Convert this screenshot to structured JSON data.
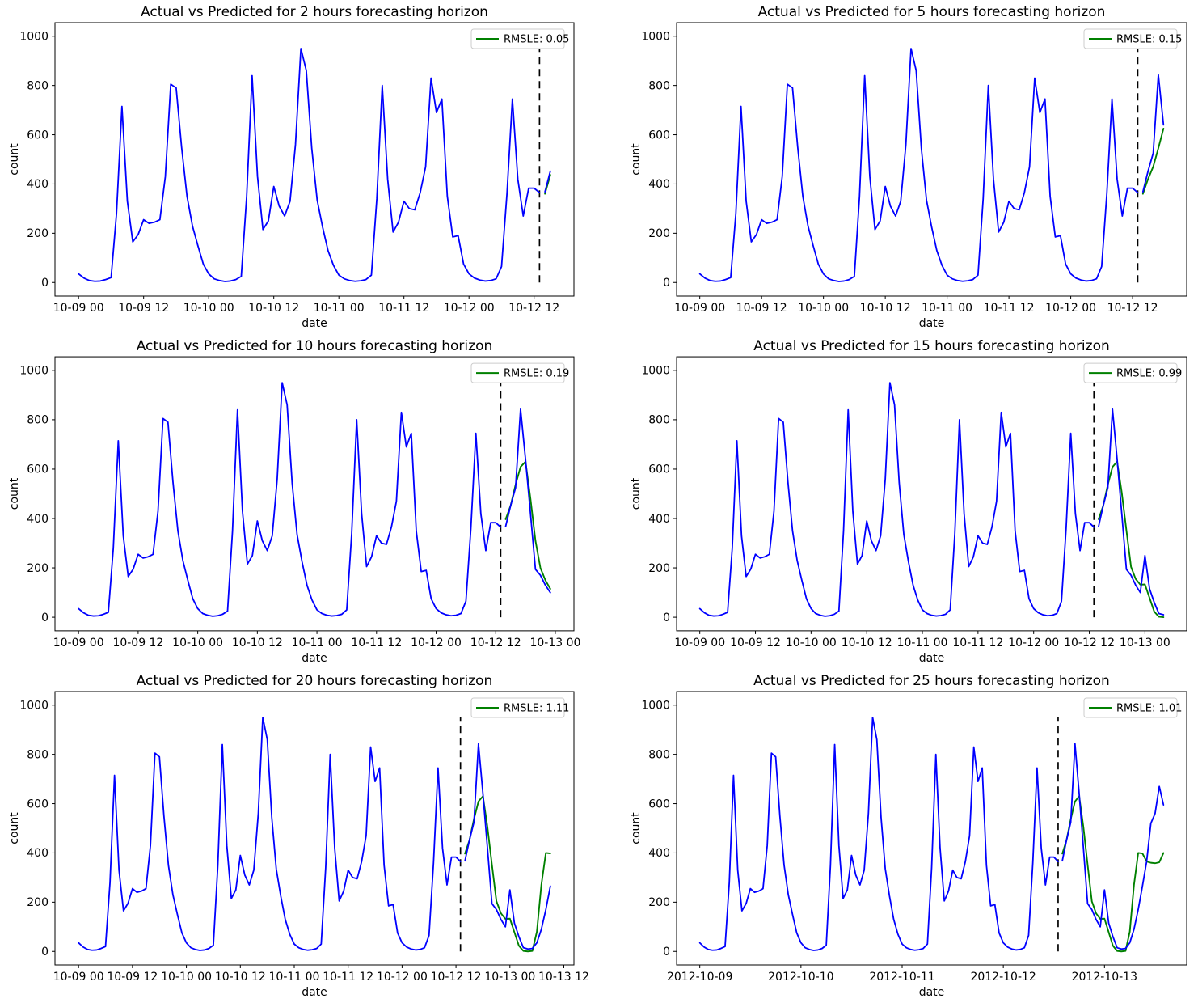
{
  "chart_data": {
    "type": "line",
    "layout": {
      "rows": 3,
      "cols": 2
    },
    "shared": {
      "xlabel": "date",
      "ylabel": "count",
      "y_ticks": [
        0,
        200,
        400,
        600,
        800,
        1000
      ],
      "ylim": [
        -55,
        1055
      ],
      "start_timestamp": "2012-10-09 00:00",
      "hour_step": 1,
      "forecast_split_hour": 85,
      "split_line_value_range": [
        0,
        950
      ],
      "colors": {
        "actual": "#0000ff",
        "predicted": "#008000",
        "split_line": "#000000",
        "legend_border": "#cccccc"
      },
      "actual_history_start_hour": 0,
      "actual_history": [
        35,
        18,
        8,
        5,
        6,
        12,
        20,
        280,
        715,
        330,
        165,
        195,
        255,
        240,
        245,
        255,
        430,
        805,
        790,
        550,
        350,
        230,
        150,
        75,
        35,
        15,
        8,
        4,
        6,
        12,
        25,
        350,
        840,
        430,
        215,
        250,
        390,
        310,
        270,
        330,
        560,
        950,
        860,
        545,
        335,
        225,
        130,
        70,
        30,
        15,
        8,
        5,
        7,
        12,
        30,
        340,
        800,
        420,
        205,
        245,
        330,
        300,
        295,
        365,
        470,
        830,
        690,
        745,
        350,
        185,
        190,
        75,
        35,
        18,
        10,
        6,
        8,
        15,
        65,
        360,
        745,
        420,
        270,
        383,
        383,
        365
      ],
      "actual_future_start_hour": 86,
      "actual_future": [
        368,
        452,
        525,
        843,
        640,
        420,
        194,
        170,
        130,
        100,
        250,
        115,
        60,
        15,
        10,
        12,
        35,
        90,
        170,
        265,
        365,
        520,
        560,
        670,
        595
      ]
    },
    "charts": [
      {
        "id": "2h",
        "title": "Actual vs Predicted for 2 hours forecasting horizon",
        "horizon_hours": 2,
        "rmsle": 0.05,
        "legend_label": "RMSLE: 0.05",
        "x_tick_hours": [
          0,
          12,
          24,
          36,
          48,
          60,
          72,
          84
        ],
        "x_tick_labels": [
          "10-09 00",
          "10-09 12",
          "10-10 00",
          "10-10 12",
          "10-11 00",
          "10-11 12",
          "10-12 00",
          "10-12 12"
        ],
        "predicted": [
          360,
          437
        ]
      },
      {
        "id": "5h",
        "title": "Actual vs Predicted for 5 hours forecasting horizon",
        "horizon_hours": 5,
        "rmsle": 0.15,
        "legend_label": "RMSLE: 0.15",
        "x_tick_hours": [
          0,
          12,
          24,
          36,
          48,
          60,
          72,
          84
        ],
        "x_tick_labels": [
          "10-09 00",
          "10-09 12",
          "10-10 00",
          "10-10 12",
          "10-11 00",
          "10-11 12",
          "10-12 00",
          "10-12 12"
        ],
        "predicted": [
          360,
          420,
          470,
          545,
          625
        ]
      },
      {
        "id": "10h",
        "title": "Actual vs Predicted for 10 hours forecasting horizon",
        "horizon_hours": 10,
        "rmsle": 0.19,
        "legend_label": "RMSLE: 0.19",
        "x_tick_hours": [
          0,
          12,
          24,
          36,
          48,
          60,
          72,
          84,
          96
        ],
        "x_tick_labels": [
          "10-09 00",
          "10-09 12",
          "10-10 00",
          "10-10 12",
          "10-11 00",
          "10-11 12",
          "10-12 00",
          "10-12 12",
          "10-13 00"
        ],
        "predicted": [
          397,
          452,
          537,
          609,
          630,
          480,
          310,
          200,
          150,
          115
        ]
      },
      {
        "id": "15h",
        "title": "Actual vs Predicted for 15 hours forecasting horizon",
        "horizon_hours": 15,
        "rmsle": 0.99,
        "legend_label": "RMSLE: 0.99",
        "x_tick_hours": [
          0,
          12,
          24,
          36,
          48,
          60,
          72,
          84,
          96
        ],
        "x_tick_labels": [
          "10-09 00",
          "10-09 12",
          "10-10 00",
          "10-10 12",
          "10-11 00",
          "10-11 12",
          "10-12 00",
          "10-12 12",
          "10-13 00"
        ],
        "predicted": [
          397,
          452,
          537,
          609,
          630,
          505,
          352,
          204,
          155,
          132,
          133,
          78,
          23,
          2,
          0
        ]
      },
      {
        "id": "20h",
        "title": "Actual vs Predicted for 20 hours forecasting horizon",
        "horizon_hours": 20,
        "rmsle": 1.11,
        "legend_label": "RMSLE: 1.11",
        "x_tick_hours": [
          0,
          12,
          24,
          36,
          48,
          60,
          72,
          84,
          96,
          108
        ],
        "x_tick_labels": [
          "10-09 00",
          "10-09 12",
          "10-10 00",
          "10-10 12",
          "10-11 00",
          "10-11 12",
          "10-12 00",
          "10-12 12",
          "10-13 00",
          "10-13 12"
        ],
        "predicted": [
          397,
          452,
          537,
          609,
          630,
          505,
          352,
          204,
          155,
          132,
          133,
          78,
          23,
          2,
          0,
          2,
          80,
          270,
          400,
          398
        ]
      },
      {
        "id": "25h",
        "title": "Actual vs Predicted for 25 hours forecasting horizon",
        "horizon_hours": 25,
        "rmsle": 1.01,
        "legend_label": "RMSLE: 1.01",
        "x_tick_hours": [
          0,
          24,
          48,
          72,
          96
        ],
        "x_tick_labels": [
          "2012-10-09",
          "2012-10-10",
          "2012-10-11",
          "2012-10-12",
          "2012-10-13"
        ],
        "predicted": [
          397,
          452,
          537,
          609,
          630,
          505,
          352,
          204,
          155,
          132,
          133,
          78,
          23,
          2,
          0,
          2,
          80,
          270,
          400,
          398,
          365,
          360,
          358,
          362,
          400
        ]
      }
    ]
  }
}
